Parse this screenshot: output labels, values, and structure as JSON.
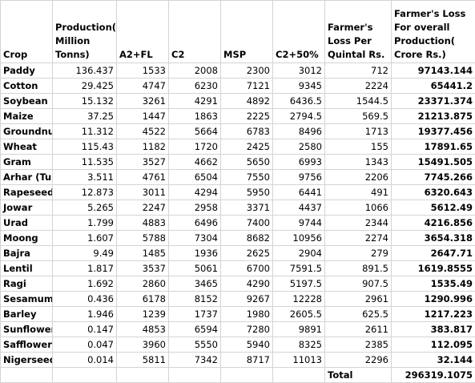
{
  "table": {
    "header": [
      "Crop",
      "Production( Million Tonns)",
      "A2+FL",
      "C2",
      "MSP",
      "C2+50%",
      "Farmer's Loss Per Quintal Rs.",
      "Farmer's Loss For overall Production( Crore Rs.)"
    ],
    "rows": [
      [
        "Paddy",
        "136.437",
        "1533",
        "2008",
        "2300",
        "3012",
        "712",
        "97143.144"
      ],
      [
        "Cotton",
        "29.425",
        "4747",
        "6230",
        "7121",
        "9345",
        "2224",
        "65441.2"
      ],
      [
        "Soybean",
        "15.132",
        "3261",
        "4291",
        "4892",
        "6436.5",
        "1544.5",
        "23371.374"
      ],
      [
        "Maize",
        "37.25",
        "1447",
        "1863",
        "2225",
        "2794.5",
        "569.5",
        "21213.875"
      ],
      [
        "Groundnut",
        "11.312",
        "4522",
        "5664",
        "6783",
        "8496",
        "1713",
        "19377.456"
      ],
      [
        "Wheat",
        "115.43",
        "1182",
        "1720",
        "2425",
        "2580",
        "155",
        "17891.65"
      ],
      [
        "Gram",
        "11.535",
        "3527",
        "4662",
        "5650",
        "6993",
        "1343",
        "15491.505"
      ],
      [
        "Arhar (Tur)",
        "3.511",
        "4761",
        "6504",
        "7550",
        "9756",
        "2206",
        "7745.266"
      ],
      [
        "Rapeseed &",
        "12.873",
        "3011",
        "4294",
        "5950",
        "6441",
        "491",
        "6320.643"
      ],
      [
        "Jowar",
        "5.265",
        "2247",
        "2958",
        "3371",
        "4437",
        "1066",
        "5612.49"
      ],
      [
        "Urad",
        "1.799",
        "4883",
        "6496",
        "7400",
        "9744",
        "2344",
        "4216.856"
      ],
      [
        "Moong",
        "1.607",
        "5788",
        "7304",
        "8682",
        "10956",
        "2274",
        "3654.318"
      ],
      [
        "Bajra",
        "9.49",
        "1485",
        "1936",
        "2625",
        "2904",
        "279",
        "2647.71"
      ],
      [
        "Lentil",
        "1.817",
        "3537",
        "5061",
        "6700",
        "7591.5",
        "891.5",
        "1619.8555"
      ],
      [
        "Ragi",
        "1.692",
        "2860",
        "3465",
        "4290",
        "5197.5",
        "907.5",
        "1535.49"
      ],
      [
        "Sesamum",
        "0.436",
        "6178",
        "8152",
        "9267",
        "12228",
        "2961",
        "1290.996"
      ],
      [
        "Barley",
        "1.946",
        "1239",
        "1737",
        "1980",
        "2605.5",
        "625.5",
        "1217.223"
      ],
      [
        "Sunflower",
        "0.147",
        "4853",
        "6594",
        "7280",
        "9891",
        "2611",
        "383.817"
      ],
      [
        "Safflower",
        "0.047",
        "3960",
        "5550",
        "5940",
        "8325",
        "2385",
        "112.095"
      ],
      [
        "Nigerseed",
        "0.014",
        "5811",
        "7342",
        "8717",
        "11013",
        "2296",
        "32.144"
      ]
    ],
    "total_label": "Total",
    "total_value": "296319.1075"
  }
}
